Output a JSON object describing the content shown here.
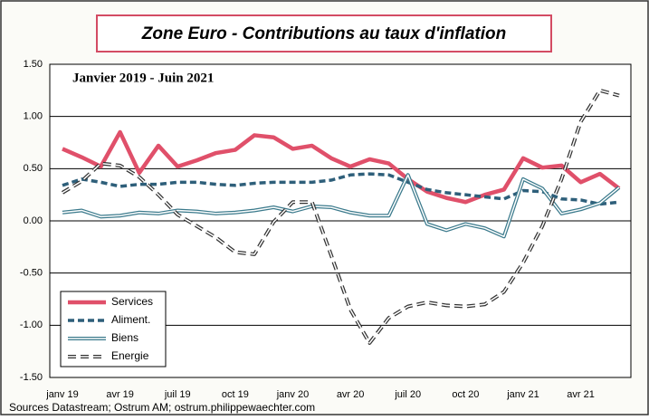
{
  "chart_data": {
    "type": "line",
    "title": "Zone Euro - Contributions au taux d'inflation",
    "subtitle": "Janvier 2019 - Juin 2021",
    "source": "Sources Datastream; Ostrum AM; ostrum.philippewaechter.com",
    "categories": [
      "janv 19",
      null,
      null,
      "avr 19",
      null,
      null,
      "juil 19",
      null,
      null,
      "oct 19",
      null,
      null,
      "janv 20",
      null,
      null,
      "avr 20",
      null,
      null,
      "juil 20",
      null,
      null,
      "oct 20",
      null,
      null,
      "janv 21",
      null,
      null,
      "avr 21",
      null,
      null
    ],
    "series": [
      {
        "name": "Services",
        "color": "#e0506a",
        "style": "solid",
        "values": [
          0.69,
          0.61,
          0.52,
          0.85,
          0.46,
          0.72,
          0.52,
          0.58,
          0.65,
          0.68,
          0.82,
          0.8,
          0.69,
          0.72,
          0.6,
          0.52,
          0.59,
          0.55,
          0.4,
          0.28,
          0.22,
          0.18,
          0.25,
          0.3,
          0.6,
          0.51,
          0.53,
          0.37,
          0.45,
          0.31
        ]
      },
      {
        "name": "Aliment.",
        "color": "#2e5f7a",
        "style": "dashed",
        "values": [
          0.34,
          0.4,
          0.37,
          0.33,
          0.35,
          0.35,
          0.37,
          0.37,
          0.35,
          0.34,
          0.36,
          0.37,
          0.37,
          0.37,
          0.39,
          0.44,
          0.45,
          0.44,
          0.37,
          0.3,
          0.27,
          0.25,
          0.23,
          0.21,
          0.29,
          0.28,
          0.21,
          0.2,
          0.16,
          0.18
        ]
      },
      {
        "name": "Biens",
        "color": "#3b7a8c",
        "style": "double",
        "values": [
          0.08,
          0.1,
          0.04,
          0.05,
          0.08,
          0.07,
          0.1,
          0.09,
          0.07,
          0.08,
          0.1,
          0.13,
          0.09,
          0.14,
          0.13,
          0.08,
          0.05,
          0.05,
          0.44,
          -0.03,
          -0.09,
          -0.03,
          -0.07,
          -0.15,
          0.4,
          0.31,
          0.07,
          0.11,
          0.17,
          0.32
        ]
      },
      {
        "name": "Energie",
        "color": "#333333",
        "style": "dashed-double",
        "values": [
          0.27,
          0.38,
          0.55,
          0.53,
          0.42,
          0.25,
          0.06,
          -0.05,
          -0.16,
          -0.3,
          -0.32,
          -0.01,
          0.18,
          0.18,
          -0.33,
          -0.85,
          -1.17,
          -0.93,
          -0.82,
          -0.78,
          -0.81,
          -0.82,
          -0.8,
          -0.68,
          -0.4,
          -0.05,
          0.4,
          0.95,
          1.25,
          1.2
        ]
      }
    ],
    "ylim": [
      -1.5,
      1.5
    ],
    "yticks": [
      {
        "value": -1.5,
        "label": "-1.50"
      },
      {
        "value": -1,
        "label": "-1.00"
      },
      {
        "value": -0.5,
        "label": "-0.50"
      },
      {
        "value": 0,
        "label": "0.00"
      },
      {
        "value": 0.5,
        "label": "0.50"
      },
      {
        "value": 1,
        "label": "1.00"
      },
      {
        "value": 1.5,
        "label": "1.50"
      }
    ],
    "grid": true,
    "legend": "lower left"
  }
}
